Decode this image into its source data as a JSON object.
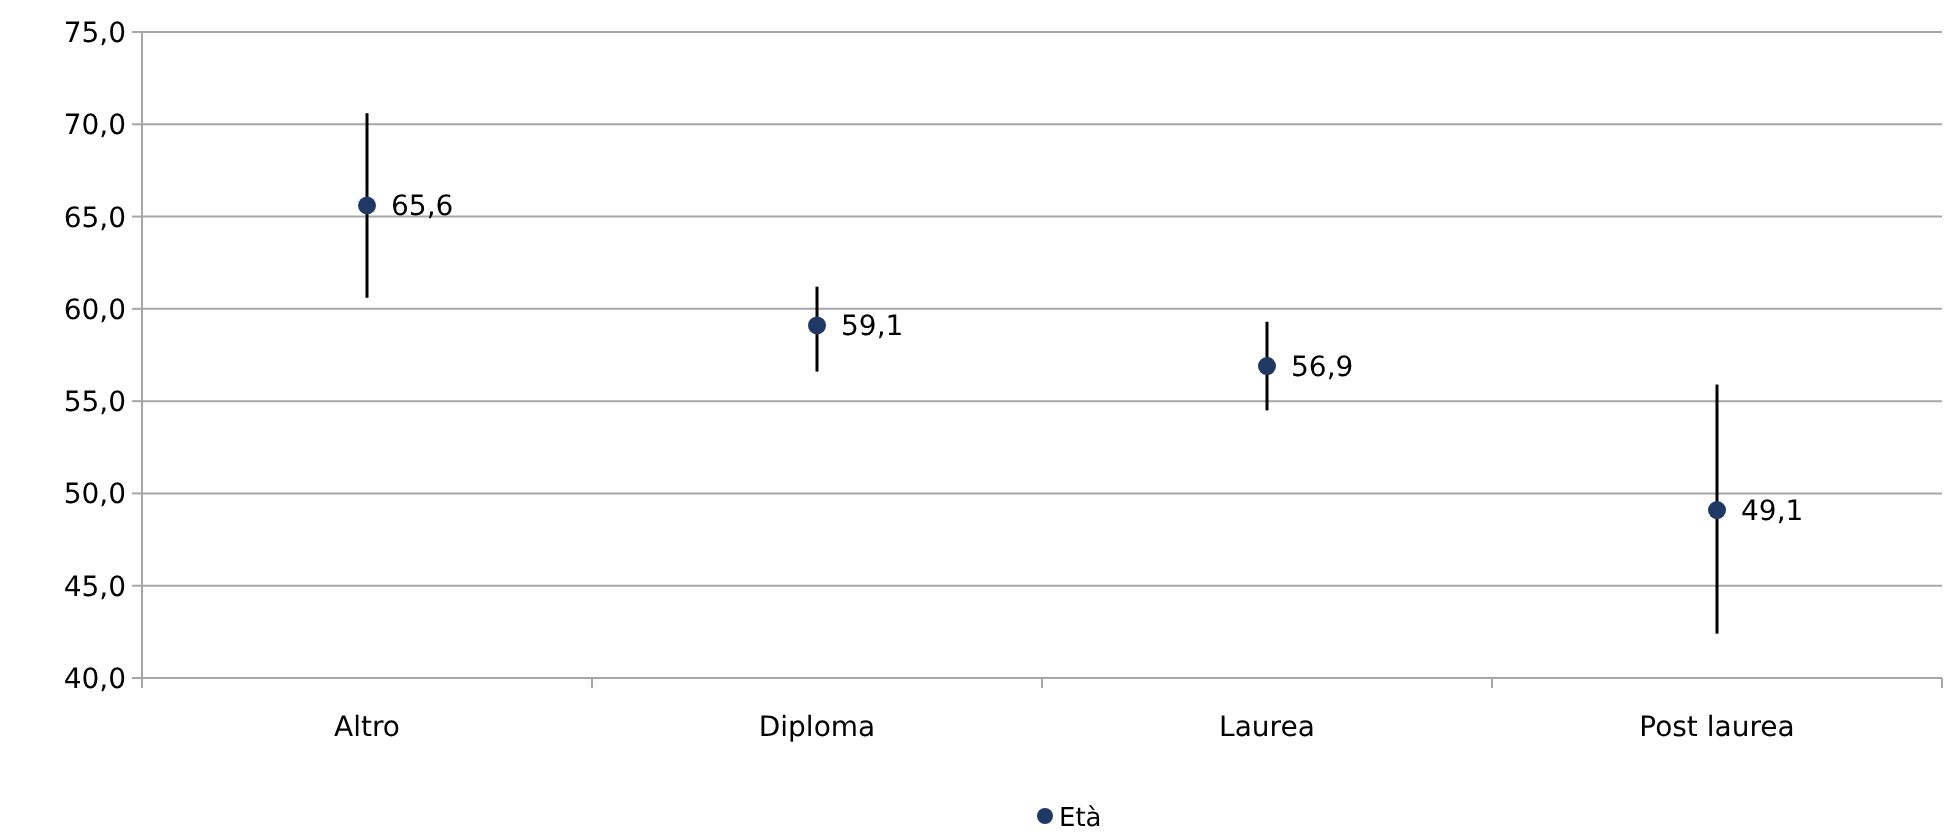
{
  "chart_data": {
    "type": "scatter",
    "categories": [
      "Altro",
      "Diploma",
      "Laurea",
      "Post laurea"
    ],
    "series": [
      {
        "name": "Età",
        "color": "#1f3864",
        "values": [
          65.6,
          59.1,
          56.9,
          49.1
        ],
        "value_labels": [
          "65,6",
          "59,1",
          "56,9",
          "49,1"
        ],
        "errors": [
          [
            60.6,
            70.6
          ],
          [
            56.6,
            61.2
          ],
          [
            54.5,
            59.3
          ],
          [
            42.4,
            55.9
          ]
        ]
      }
    ],
    "ylim": [
      40,
      75
    ],
    "yticks": [
      {
        "value": 40,
        "label": "40,0"
      },
      {
        "value": 45,
        "label": "45,0"
      },
      {
        "value": 50,
        "label": "50,0"
      },
      {
        "value": 55,
        "label": "55,0"
      },
      {
        "value": 60,
        "label": "60,0"
      },
      {
        "value": 65,
        "label": "65,0"
      },
      {
        "value": 70,
        "label": "70,0"
      },
      {
        "value": 75,
        "label": "75,0"
      }
    ],
    "grid": "y",
    "legend": "bottom",
    "marker": "circle"
  }
}
